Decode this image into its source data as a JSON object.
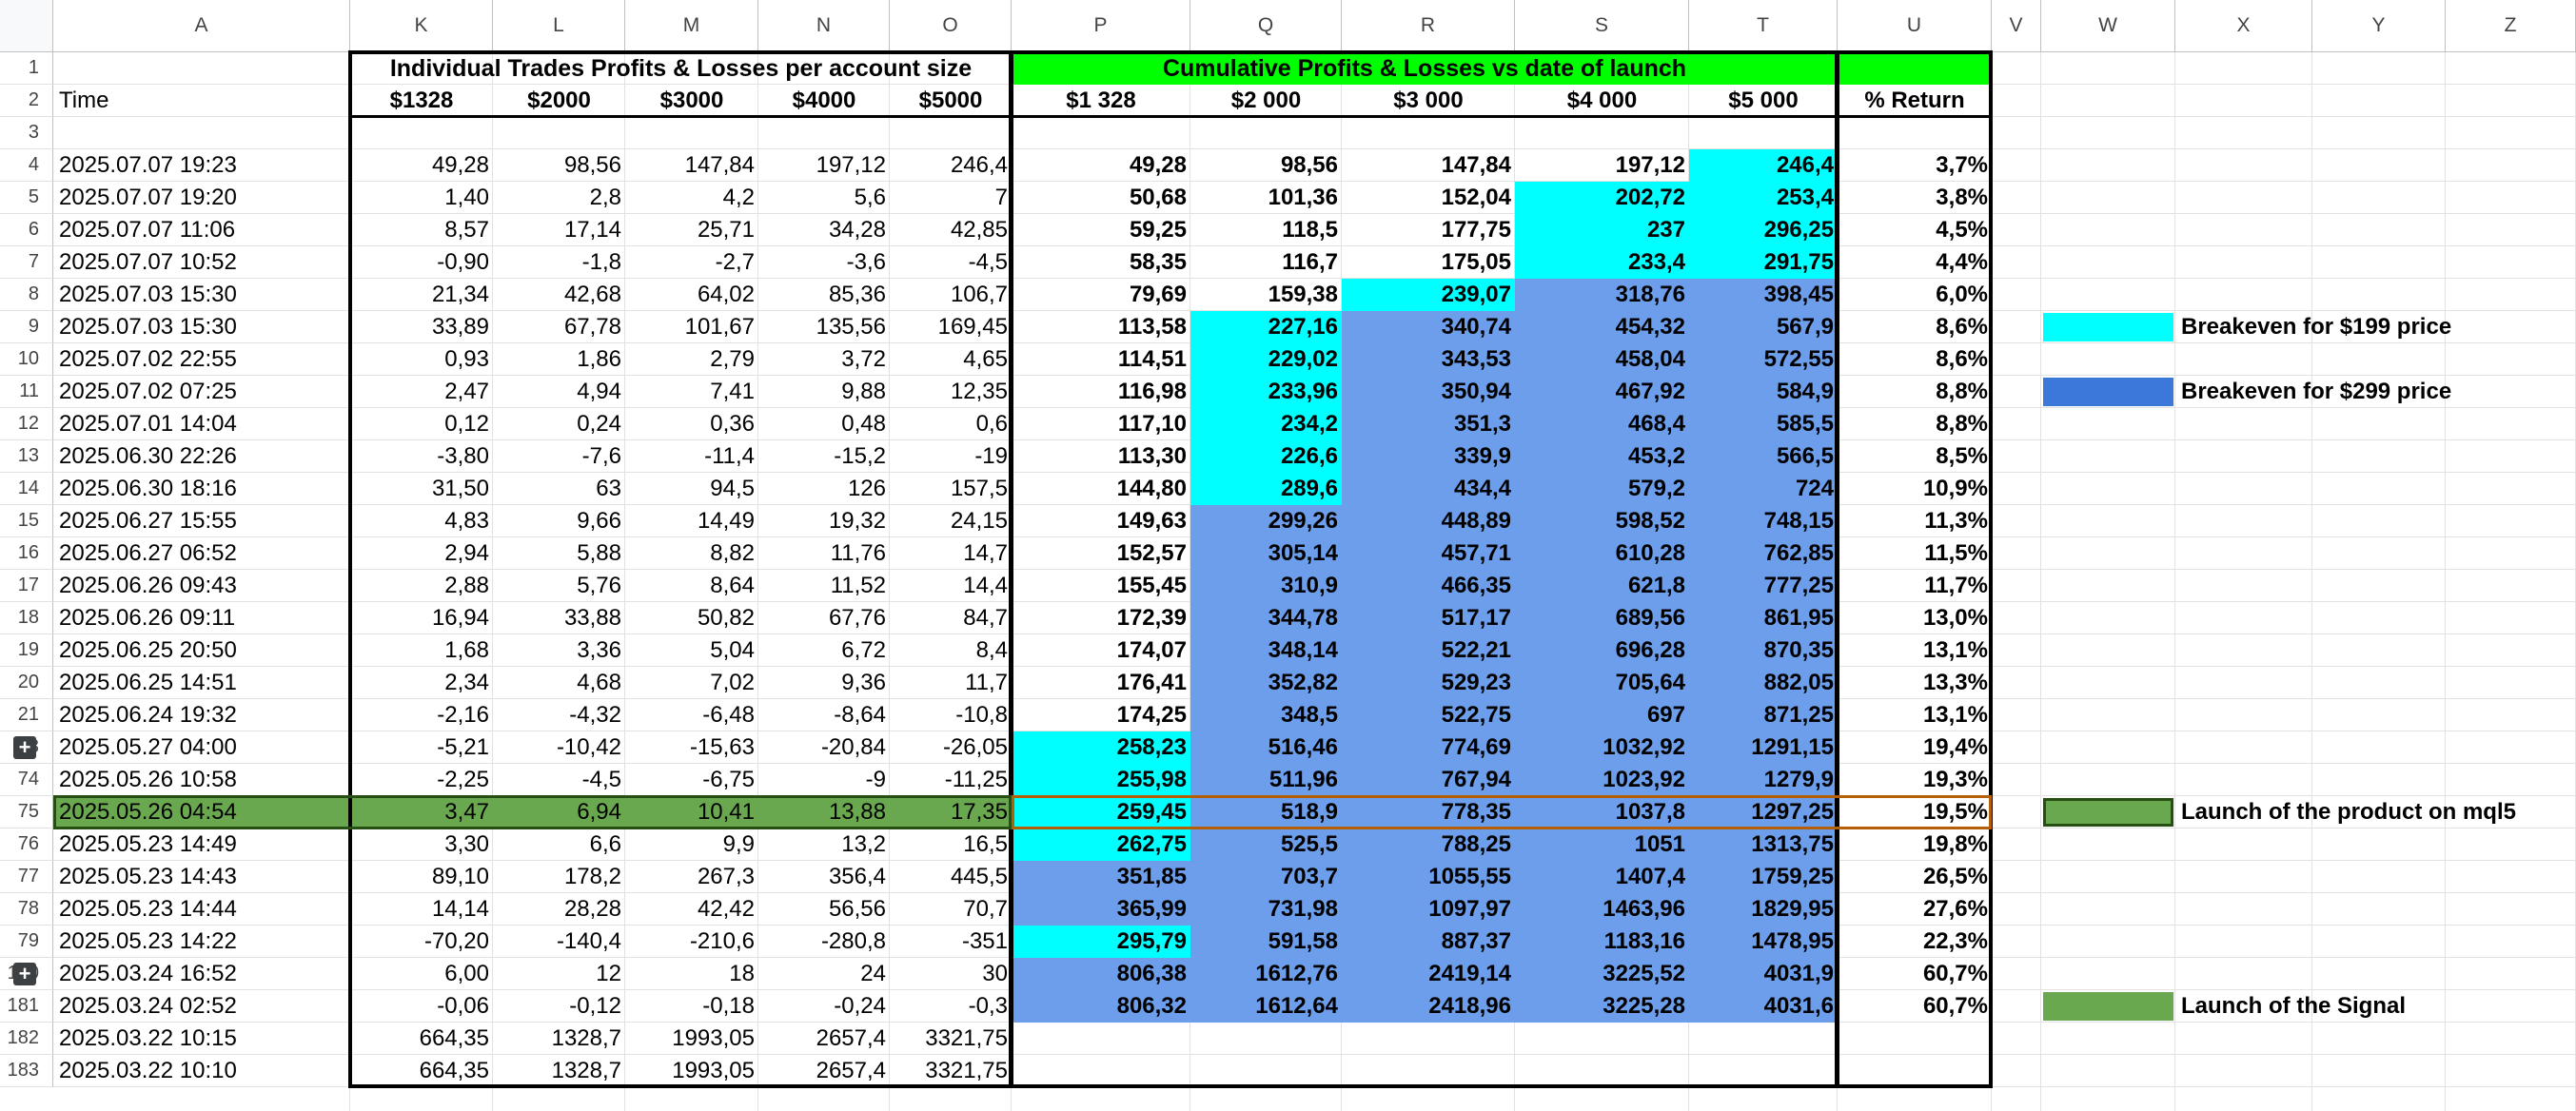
{
  "columns": [
    "A",
    "K",
    "L",
    "M",
    "N",
    "O",
    "P",
    "Q",
    "R",
    "S",
    "T",
    "U",
    "V",
    "W",
    "X",
    "Y",
    "Z"
  ],
  "header": {
    "group1": "Individual Trades Profits & Losses per account size",
    "group2": "Cumulative Profits & Losses vs date of launch",
    "time": "Time",
    "sub": [
      "$1328",
      "$2000",
      "$3000",
      "$4000",
      "$5000",
      "$1 328",
      "$2 000",
      "$3 000",
      "$4 000",
      "$5 000",
      "% Return"
    ]
  },
  "rows": [
    {
      "n": "1"
    },
    {
      "n": "2"
    },
    {
      "n": "3",
      "t": "",
      "v": [
        "",
        "",
        "",
        "",
        "",
        "",
        "",
        "",
        "",
        "",
        ""
      ]
    },
    {
      "n": "4",
      "t": "2025.07.07 19:23",
      "v": [
        "49,28",
        "98,56",
        "147,84",
        "197,12",
        "246,4",
        "49,28",
        "98,56",
        "147,84",
        "197,12",
        "246,4",
        "3,7%"
      ],
      "c": [
        "",
        "",
        "",
        "",
        "c"
      ]
    },
    {
      "n": "5",
      "t": "2025.07.07 19:20",
      "v": [
        "1,40",
        "2,8",
        "4,2",
        "5,6",
        "7",
        "50,68",
        "101,36",
        "152,04",
        "202,72",
        "253,4",
        "3,8%"
      ],
      "c": [
        "",
        "",
        "",
        "c",
        "c"
      ]
    },
    {
      "n": "6",
      "t": "2025.07.07 11:06",
      "v": [
        "8,57",
        "17,14",
        "25,71",
        "34,28",
        "42,85",
        "59,25",
        "118,5",
        "177,75",
        "237",
        "296,25",
        "4,5%"
      ],
      "c": [
        "",
        "",
        "",
        "c",
        "c"
      ]
    },
    {
      "n": "7",
      "t": "2025.07.07 10:52",
      "v": [
        "-0,90",
        "-1,8",
        "-2,7",
        "-3,6",
        "-4,5",
        "58,35",
        "116,7",
        "175,05",
        "233,4",
        "291,75",
        "4,4%"
      ],
      "c": [
        "",
        "",
        "",
        "c",
        "c"
      ]
    },
    {
      "n": "8",
      "t": "2025.07.03 15:30",
      "v": [
        "21,34",
        "42,68",
        "64,02",
        "85,36",
        "106,7",
        "79,69",
        "159,38",
        "239,07",
        "318,76",
        "398,45",
        "6,0%"
      ],
      "c": [
        "",
        "",
        "c",
        "b",
        "b"
      ]
    },
    {
      "n": "9",
      "t": "2025.07.03 15:30",
      "v": [
        "33,89",
        "67,78",
        "101,67",
        "135,56",
        "169,45",
        "113,58",
        "227,16",
        "340,74",
        "454,32",
        "567,9",
        "8,6%"
      ],
      "c": [
        "",
        "c",
        "b",
        "b",
        "b"
      ]
    },
    {
      "n": "10",
      "t": "2025.07.02 22:55",
      "v": [
        "0,93",
        "1,86",
        "2,79",
        "3,72",
        "4,65",
        "114,51",
        "229,02",
        "343,53",
        "458,04",
        "572,55",
        "8,6%"
      ],
      "c": [
        "",
        "c",
        "b",
        "b",
        "b"
      ]
    },
    {
      "n": "11",
      "t": "2025.07.02 07:25",
      "v": [
        "2,47",
        "4,94",
        "7,41",
        "9,88",
        "12,35",
        "116,98",
        "233,96",
        "350,94",
        "467,92",
        "584,9",
        "8,8%"
      ],
      "c": [
        "",
        "c",
        "b",
        "b",
        "b"
      ]
    },
    {
      "n": "12",
      "t": "2025.07.01 14:04",
      "v": [
        "0,12",
        "0,24",
        "0,36",
        "0,48",
        "0,6",
        "117,10",
        "234,2",
        "351,3",
        "468,4",
        "585,5",
        "8,8%"
      ],
      "c": [
        "",
        "c",
        "b",
        "b",
        "b"
      ]
    },
    {
      "n": "13",
      "t": "2025.06.30 22:26",
      "v": [
        "-3,80",
        "-7,6",
        "-11,4",
        "-15,2",
        "-19",
        "113,30",
        "226,6",
        "339,9",
        "453,2",
        "566,5",
        "8,5%"
      ],
      "c": [
        "",
        "c",
        "b",
        "b",
        "b"
      ]
    },
    {
      "n": "14",
      "t": "2025.06.30 18:16",
      "v": [
        "31,50",
        "63",
        "94,5",
        "126",
        "157,5",
        "144,80",
        "289,6",
        "434,4",
        "579,2",
        "724",
        "10,9%"
      ],
      "c": [
        "",
        "c",
        "b",
        "b",
        "b"
      ]
    },
    {
      "n": "15",
      "t": "2025.06.27 15:55",
      "v": [
        "4,83",
        "9,66",
        "14,49",
        "19,32",
        "24,15",
        "149,63",
        "299,26",
        "448,89",
        "598,52",
        "748,15",
        "11,3%"
      ],
      "c": [
        "",
        "b",
        "b",
        "b",
        "b"
      ]
    },
    {
      "n": "16",
      "t": "2025.06.27 06:52",
      "v": [
        "2,94",
        "5,88",
        "8,82",
        "11,76",
        "14,7",
        "152,57",
        "305,14",
        "457,71",
        "610,28",
        "762,85",
        "11,5%"
      ],
      "c": [
        "",
        "b",
        "b",
        "b",
        "b"
      ]
    },
    {
      "n": "17",
      "t": "2025.06.26 09:43",
      "v": [
        "2,88",
        "5,76",
        "8,64",
        "11,52",
        "14,4",
        "155,45",
        "310,9",
        "466,35",
        "621,8",
        "777,25",
        "11,7%"
      ],
      "c": [
        "",
        "b",
        "b",
        "b",
        "b"
      ]
    },
    {
      "n": "18",
      "t": "2025.06.26 09:11",
      "v": [
        "16,94",
        "33,88",
        "50,82",
        "67,76",
        "84,7",
        "172,39",
        "344,78",
        "517,17",
        "689,56",
        "861,95",
        "13,0%"
      ],
      "c": [
        "",
        "b",
        "b",
        "b",
        "b"
      ]
    },
    {
      "n": "19",
      "t": "2025.06.25 20:50",
      "v": [
        "1,68",
        "3,36",
        "5,04",
        "6,72",
        "8,4",
        "174,07",
        "348,14",
        "522,21",
        "696,28",
        "870,35",
        "13,1%"
      ],
      "c": [
        "",
        "b",
        "b",
        "b",
        "b"
      ]
    },
    {
      "n": "20",
      "t": "2025.06.25 14:51",
      "v": [
        "2,34",
        "4,68",
        "7,02",
        "9,36",
        "11,7",
        "176,41",
        "352,82",
        "529,23",
        "705,64",
        "882,05",
        "13,3%"
      ],
      "c": [
        "",
        "b",
        "b",
        "b",
        "b"
      ]
    },
    {
      "n": "21",
      "t": "2025.06.24 19:32",
      "v": [
        "-2,16",
        "-4,32",
        "-6,48",
        "-8,64",
        "-10,8",
        "174,25",
        "348,5",
        "522,75",
        "697",
        "871,25",
        "13,1%"
      ],
      "c": [
        "",
        "b",
        "b",
        "b",
        "b"
      ]
    },
    {
      "n": "73",
      "t": "2025.05.27 04:00",
      "v": [
        "-5,21",
        "-10,42",
        "-15,63",
        "-20,84",
        "-26,05",
        "258,23",
        "516,46",
        "774,69",
        "1032,92",
        "1291,15",
        "19,4%"
      ],
      "c": [
        "c",
        "b",
        "b",
        "b",
        "b"
      ]
    },
    {
      "n": "74",
      "t": "2025.05.26 10:58",
      "v": [
        "-2,25",
        "-4,5",
        "-6,75",
        "-9",
        "-11,25",
        "255,98",
        "511,96",
        "767,94",
        "1023,92",
        "1279,9",
        "19,3%"
      ],
      "c": [
        "c",
        "b",
        "b",
        "b",
        "b"
      ]
    },
    {
      "n": "75",
      "t": "2025.05.26 04:54",
      "v": [
        "3,47",
        "6,94",
        "10,41",
        "13,88",
        "17,35",
        "259,45",
        "518,9",
        "778,35",
        "1037,8",
        "1297,25",
        "19,5%"
      ],
      "c": [
        "c",
        "b",
        "b",
        "b",
        "b"
      ]
    },
    {
      "n": "76",
      "t": "2025.05.23 14:49",
      "v": [
        "3,30",
        "6,6",
        "9,9",
        "13,2",
        "16,5",
        "262,75",
        "525,5",
        "788,25",
        "1051",
        "1313,75",
        "19,8%"
      ],
      "c": [
        "c",
        "b",
        "b",
        "b",
        "b"
      ]
    },
    {
      "n": "77",
      "t": "2025.05.23 14:43",
      "v": [
        "89,10",
        "178,2",
        "267,3",
        "356,4",
        "445,5",
        "351,85",
        "703,7",
        "1055,55",
        "1407,4",
        "1759,25",
        "26,5%"
      ],
      "c": [
        "b",
        "b",
        "b",
        "b",
        "b"
      ]
    },
    {
      "n": "78",
      "t": "2025.05.23 14:44",
      "v": [
        "14,14",
        "28,28",
        "42,42",
        "56,56",
        "70,7",
        "365,99",
        "731,98",
        "1097,97",
        "1463,96",
        "1829,95",
        "27,6%"
      ],
      "c": [
        "b",
        "b",
        "b",
        "b",
        "b"
      ]
    },
    {
      "n": "79",
      "t": "2025.05.23 14:22",
      "v": [
        "-70,20",
        "-140,4",
        "-210,6",
        "-280,8",
        "-351",
        "295,79",
        "591,58",
        "887,37",
        "1183,16",
        "1478,95",
        "22,3%"
      ],
      "c": [
        "c",
        "b",
        "b",
        "b",
        "b"
      ]
    },
    {
      "n": "180",
      "t": "2025.03.24 16:52",
      "v": [
        "6,00",
        "12",
        "18",
        "24",
        "30",
        "806,38",
        "1612,76",
        "2419,14",
        "3225,52",
        "4031,9",
        "60,7%"
      ],
      "c": [
        "b",
        "b",
        "b",
        "b",
        "b"
      ]
    },
    {
      "n": "181",
      "t": "2025.03.24 02:52",
      "v": [
        "-0,06",
        "-0,12",
        "-0,18",
        "-0,24",
        "-0,3",
        "806,32",
        "1612,64",
        "2418,96",
        "3225,28",
        "4031,6",
        "60,7%"
      ],
      "c": [
        "b",
        "b",
        "b",
        "b",
        "b"
      ]
    },
    {
      "n": "182",
      "t": "2025.03.22 10:15",
      "v": [
        "664,35",
        "1328,7",
        "1993,05",
        "2657,4",
        "3321,75",
        "",
        "",
        "",
        "",
        "",
        ""
      ],
      "c": [
        "",
        "",
        "",
        "",
        ""
      ]
    },
    {
      "n": "183",
      "t": "2025.03.22 10:10",
      "v": [
        "664,35",
        "1328,7",
        "1993,05",
        "2657,4",
        "3321,75",
        "",
        "",
        "",
        "",
        "",
        ""
      ],
      "c": [
        "",
        "",
        "",
        "",
        ""
      ]
    }
  ],
  "legend": [
    {
      "label": "Breakeven for $199 price",
      "color": "#00ffff",
      "row": "9"
    },
    {
      "label": "Breakeven for $299 price",
      "color": "#3c78d8",
      "row": "11"
    },
    {
      "label": "Launch of the product on mql5",
      "color": "#6aa84f",
      "row": "75"
    },
    {
      "label": "Launch of the Signal",
      "color": "#6aa84f",
      "row": "181"
    }
  ],
  "colors": {
    "cyan": "#00ffff",
    "blue": "#6d9eeb",
    "green_header": "#00ff00",
    "launch_row": "#6aa84f"
  },
  "icons": [
    "expand-group-icon"
  ]
}
